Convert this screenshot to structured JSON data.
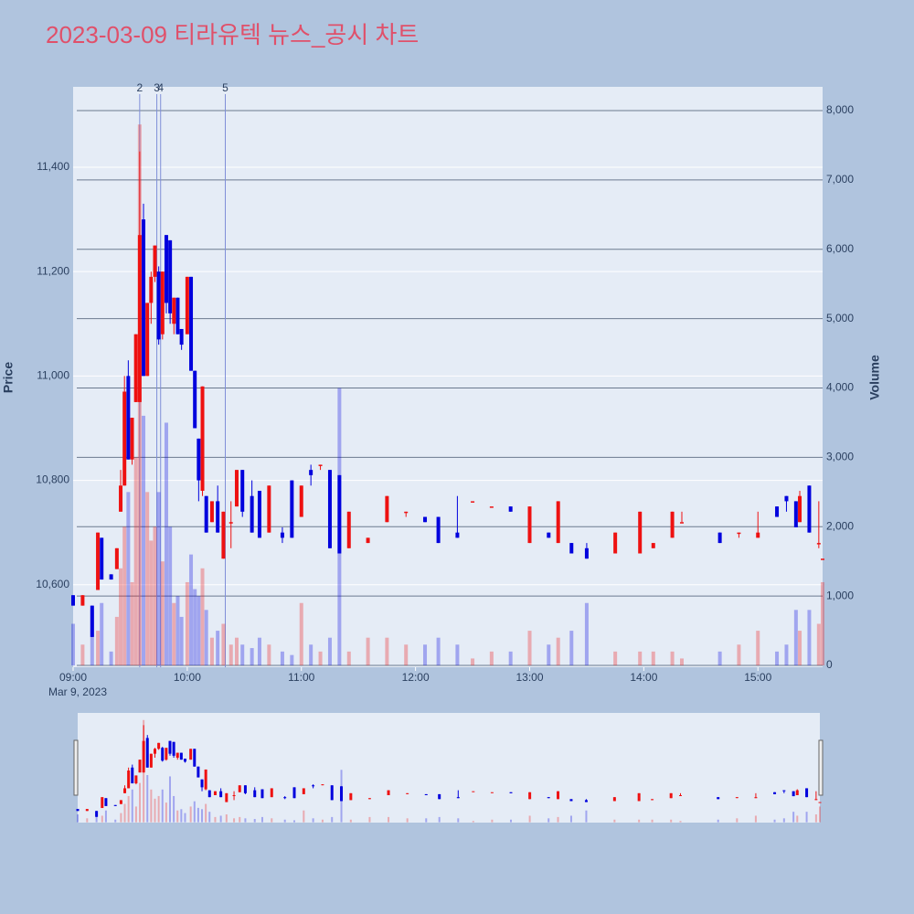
{
  "chart_data": {
    "type": "candlestick",
    "title": "2023-03-09 티라유텍 뉴스_공시 차트",
    "y_label": "Price",
    "y2_label": "Volume",
    "x_date_label": "Mar 9, 2023",
    "increasing_color": "#ee1111",
    "decreasing_color": "#0000dd",
    "xlim": [
      "09:00",
      "15:34"
    ],
    "xticks": [
      "09:00",
      "10:00",
      "11:00",
      "12:00",
      "13:00",
      "14:00",
      "15:00"
    ],
    "ylim": [
      10442,
      11554
    ],
    "yticks": [
      {
        "value": 10600,
        "label": "10,600"
      },
      {
        "value": 10800,
        "label": "10,800"
      },
      {
        "value": 11000,
        "label": "11,000"
      },
      {
        "value": 11200,
        "label": "11,200"
      },
      {
        "value": 11400,
        "label": "11,400"
      }
    ],
    "y2lim": [
      -26,
      8343
    ],
    "y2ticks": [
      0,
      {
        "value": 1000,
        "label": "1,000"
      },
      {
        "value": 2000,
        "label": "2,000"
      },
      {
        "value": 3000,
        "label": "3,000"
      },
      {
        "value": 4000,
        "label": "4,000"
      },
      {
        "value": 5000,
        "label": "5,000"
      },
      {
        "value": 6000,
        "label": "6,000"
      },
      {
        "value": 7000,
        "label": "7,000"
      },
      {
        "value": 8000,
        "label": "8,000"
      }
    ],
    "annotations": [
      {
        "label": "2",
        "x": "09:35"
      },
      {
        "label": "3",
        "x": "09:44"
      },
      {
        "label": "4",
        "x": "09:46"
      },
      {
        "label": "5",
        "x": "10:20"
      }
    ],
    "x": [
      "09:00",
      "09:05",
      "09:10",
      "09:13",
      "09:15",
      "09:20",
      "09:23",
      "09:25",
      "09:27",
      "09:29",
      "09:31",
      "09:33",
      "09:35",
      "09:37",
      "09:39",
      "09:41",
      "09:43",
      "09:45",
      "09:47",
      "09:49",
      "09:51",
      "09:53",
      "09:55",
      "09:57",
      "10:00",
      "10:02",
      "10:04",
      "10:06",
      "10:08",
      "10:10",
      "10:13",
      "10:16",
      "10:19",
      "10:23",
      "10:26",
      "10:29",
      "10:34",
      "10:38",
      "10:43",
      "10:50",
      "10:55",
      "11:00",
      "11:05",
      "11:10",
      "11:15",
      "11:20",
      "11:25",
      "11:35",
      "11:45",
      "11:55",
      "12:05",
      "12:12",
      "12:22",
      "12:30",
      "12:40",
      "12:50",
      "13:00",
      "13:10",
      "13:15",
      "13:22",
      "13:30",
      "13:45",
      "13:58",
      "14:05",
      "14:15",
      "14:20",
      "14:40",
      "14:50",
      "15:00",
      "15:10",
      "15:15",
      "15:20",
      "15:22",
      "15:27",
      "15:32",
      "15:34"
    ],
    "open": [
      10580,
      10560,
      10560,
      10590,
      10690,
      10620,
      10630,
      10740,
      10790,
      11000,
      10840,
      10950,
      10950,
      11300,
      11000,
      11140,
      11190,
      11200,
      11080,
      11270,
      11260,
      11100,
      11150,
      11090,
      11080,
      11190,
      11010,
      10880,
      10780,
      10770,
      10720,
      10760,
      10650,
      10720,
      10750,
      10820,
      10770,
      10780,
      10700,
      10700,
      10800,
      10730,
      10820,
      10830,
      10820,
      10810,
      10670,
      10680,
      10720,
      10740,
      10730,
      10730,
      10700,
      10760,
      10750,
      10750,
      10680,
      10700,
      10680,
      10680,
      10670,
      10660,
      10660,
      10670,
      10690,
      10720,
      10700,
      10700,
      10690,
      10750,
      10770,
      10760,
      10720,
      10790,
      10680,
      10650
    ],
    "high": [
      10580,
      10580,
      10560,
      10700,
      10690,
      10620,
      10670,
      10820,
      11000,
      11030,
      10920,
      11080,
      11430,
      11330,
      11140,
      11200,
      11250,
      11210,
      11200,
      11270,
      11260,
      11150,
      11150,
      11090,
      11190,
      11190,
      11010,
      10880,
      10980,
      10770,
      10760,
      10790,
      10740,
      10760,
      10820,
      10820,
      10800,
      10780,
      10790,
      10710,
      10800,
      10790,
      10830,
      10830,
      10820,
      10810,
      10740,
      10690,
      10770,
      10740,
      10730,
      10730,
      10770,
      10760,
      10750,
      10750,
      10750,
      10700,
      10760,
      10680,
      10680,
      10700,
      10740,
      10680,
      10740,
      10740,
      10700,
      10700,
      10740,
      10750,
      10770,
      10760,
      10780,
      10790,
      10760,
      10650
    ],
    "low": [
      10560,
      10560,
      10500,
      10590,
      10610,
      10610,
      10630,
      10740,
      10790,
      10840,
      10830,
      10950,
      10950,
      11000,
      11000,
      11100,
      11180,
      11060,
      11070,
      11120,
      11100,
      11080,
      11080,
      11050,
      11080,
      11010,
      10900,
      10760,
      10770,
      10700,
      10720,
      10700,
      10650,
      10670,
      10750,
      10730,
      10700,
      10690,
      10700,
      10680,
      10690,
      10730,
      10790,
      10820,
      10670,
      10660,
      10670,
      10680,
      10720,
      10730,
      10720,
      10680,
      10690,
      10760,
      10750,
      10740,
      10680,
      10690,
      10680,
      10660,
      10650,
      10660,
      10660,
      10670,
      10690,
      10720,
      10680,
      10690,
      10690,
      10730,
      10740,
      10710,
      10720,
      10700,
      10670,
      10650
    ],
    "close": [
      10560,
      10580,
      10500,
      10700,
      10610,
      10610,
      10670,
      10790,
      10970,
      10840,
      10920,
      11080,
      11270,
      11000,
      11140,
      11190,
      11250,
      11070,
      11200,
      11140,
      11120,
      11150,
      11080,
      11060,
      11190,
      11010,
      10900,
      10800,
      10980,
      10700,
      10760,
      10700,
      10740,
      10720,
      10820,
      10740,
      10700,
      10690,
      10790,
      10690,
      10690,
      10790,
      10810,
      10830,
      10670,
      10660,
      10740,
      10690,
      10770,
      10740,
      10720,
      10680,
      10690,
      10760,
      10750,
      10740,
      10750,
      10690,
      10760,
      10660,
      10650,
      10700,
      10740,
      10680,
      10740,
      10720,
      10680,
      10700,
      10700,
      10730,
      10760,
      10710,
      10770,
      10700,
      10680,
      10650
    ],
    "volume": [
      600,
      300,
      800,
      500,
      900,
      200,
      700,
      1400,
      2000,
      2500,
      1200,
      3000,
      7800,
      3600,
      2500,
      1800,
      2000,
      2500,
      1500,
      3500,
      2000,
      900,
      1000,
      700,
      1200,
      1600,
      1100,
      1000,
      1400,
      800,
      400,
      500,
      600,
      300,
      400,
      300,
      250,
      400,
      300,
      200,
      150,
      900,
      300,
      200,
      400,
      4000,
      200,
      400,
      400,
      300,
      300,
      400,
      300,
      100,
      200,
      200,
      500,
      300,
      400,
      500,
      900,
      200,
      200,
      200,
      200,
      100,
      200,
      300,
      500,
      200,
      300,
      800,
      500,
      800,
      600,
      1200
    ]
  }
}
